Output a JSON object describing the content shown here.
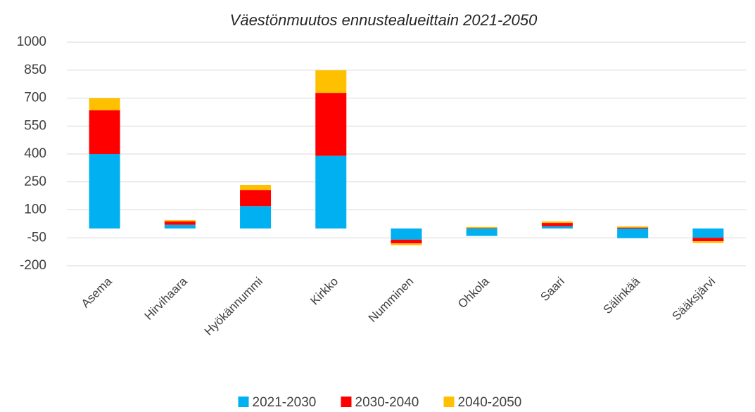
{
  "chart_data": {
    "type": "stacked_bar",
    "title": "Väestönmuutos ennustealueittain 2021-2050",
    "categories": [
      "Asema",
      "Hirvihaara",
      "Hyökännummi",
      "Kirkko",
      "Numminen",
      "Ohkola",
      "Saari",
      "Sälinkää",
      "Sääksjärvi"
    ],
    "series": [
      {
        "name": "2021-2030",
        "color": "#00b0f0",
        "values": [
          400,
          20,
          120,
          390,
          -60,
          -40,
          12,
          -52,
          -50
        ]
      },
      {
        "name": "2030-2040",
        "color": "#ff0000",
        "values": [
          235,
          18,
          87,
          338,
          -20,
          2,
          18,
          5,
          -18
        ]
      },
      {
        "name": "2040-2050",
        "color": "#ffc000",
        "values": [
          65,
          7,
          27,
          121,
          -10,
          6,
          8,
          6,
          -10
        ]
      }
    ],
    "ylim": [
      -200,
      1000
    ],
    "yticks": [
      -200,
      -50,
      100,
      250,
      400,
      550,
      700,
      850,
      1000
    ],
    "grid": true,
    "legend": "bottom"
  }
}
